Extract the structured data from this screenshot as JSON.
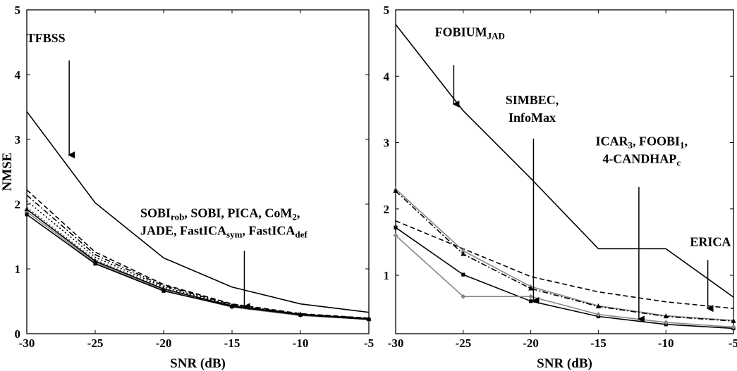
{
  "chart_data": [
    {
      "type": "line",
      "ylabel": "NMSE",
      "xlabel": "SNR (dB)",
      "xlim": [
        -30,
        -5
      ],
      "ylim": [
        0,
        5
      ],
      "xticks": [
        -30,
        -25,
        -20,
        -15,
        -10,
        -5
      ],
      "yticks": [
        0,
        1,
        2,
        3,
        4,
        5
      ],
      "x": [
        -30,
        -25,
        -20,
        -15,
        -10,
        -5
      ],
      "grid": false,
      "series": [
        {
          "values": [
            3.43,
            2.02,
            1.17,
            0.72,
            0.46,
            0.33
          ],
          "color": "#000000",
          "style": "solid",
          "marker": "none"
        },
        {
          "values": [
            2.22,
            1.26,
            0.76,
            0.46,
            0.31,
            0.24
          ],
          "color": "#000000",
          "style": "dashed",
          "marker": "none"
        },
        {
          "values": [
            2.14,
            1.22,
            0.74,
            0.45,
            0.3,
            0.24
          ],
          "color": "#000000",
          "style": "dashdot",
          "marker": "none"
        },
        {
          "values": [
            2.05,
            1.18,
            0.72,
            0.44,
            0.3,
            0.23
          ],
          "color": "#000000",
          "style": "dotted",
          "marker": "none"
        },
        {
          "values": [
            1.95,
            1.14,
            0.7,
            0.43,
            0.29,
            0.23
          ],
          "color": "#555555",
          "style": "dotted",
          "marker": "none"
        },
        {
          "values": [
            1.88,
            1.1,
            0.67,
            0.41,
            0.28,
            0.22
          ],
          "color": "#888888",
          "style": "solid",
          "marker": "diamond"
        },
        {
          "values": [
            1.84,
            1.08,
            0.66,
            0.42,
            0.29,
            0.22
          ],
          "color": "#000000",
          "style": "solid",
          "marker": "square"
        },
        {
          "values": [
            1.92,
            1.12,
            0.69,
            0.43,
            0.3,
            0.23
          ],
          "color": "#000000",
          "style": "solid",
          "marker": "triangle"
        }
      ],
      "annotations": [
        {
          "lines": [
            [
              {
                "t": "TFBSS"
              }
            ]
          ],
          "pos": [
            -28.6,
            4.5
          ],
          "anchor": "middle",
          "arrow_from": [
            -26.9,
            4.22
          ],
          "arrow_to": [
            -26.9,
            2.76
          ]
        },
        {
          "lines": [
            [
              {
                "t": "SOBI"
              },
              {
                "t": "rob",
                "sub": true
              },
              {
                "t": ", SOBI, PICA, CoM"
              },
              {
                "t": "2",
                "sub": true
              },
              {
                "t": ","
              }
            ],
            [
              {
                "t": "JADE, FastICA"
              },
              {
                "t": "sym",
                "sub": true
              },
              {
                "t": ", FastICA"
              },
              {
                "t": "def",
                "sub": true
              }
            ]
          ],
          "pos": [
            -21.7,
            1.8
          ],
          "anchor": "start",
          "arrow_from": [
            -14.1,
            1.28
          ],
          "arrow_to": [
            -14.1,
            0.42
          ]
        }
      ]
    },
    {
      "type": "line",
      "ylabel": "",
      "xlabel": "SNR (dB)",
      "xlim": [
        -30,
        -5
      ],
      "ylim": [
        0,
        5
      ],
      "yrange_drawn": [
        0.12,
        5
      ],
      "xticks": [
        -30,
        -25,
        -20,
        -15,
        -10,
        -5
      ],
      "yticks": [
        1,
        2,
        3,
        4,
        5
      ],
      "x": [
        -30,
        -25,
        -20,
        -15,
        -10,
        -5
      ],
      "grid": false,
      "series": [
        {
          "values": [
            4.78,
            3.48,
            2.46,
            1.4,
            1.4,
            0.67
          ],
          "color": "#000000",
          "style": "solid",
          "marker": "none"
        },
        {
          "values": [
            1.82,
            1.4,
            0.98,
            0.75,
            0.6,
            0.5
          ],
          "color": "#000000",
          "style": "dashed",
          "marker": "none"
        },
        {
          "values": [
            2.3,
            1.37,
            0.83,
            0.54,
            0.39,
            0.32
          ],
          "color": "#888888",
          "style": "solid",
          "marker": "triangle"
        },
        {
          "values": [
            2.27,
            1.32,
            0.8,
            0.53,
            0.38,
            0.31
          ],
          "color": "#000000",
          "style": "dashdot",
          "marker": "triangle"
        },
        {
          "values": [
            1.72,
            1.01,
            0.61,
            0.38,
            0.26,
            0.2
          ],
          "color": "#000000",
          "style": "solid",
          "marker": "square"
        },
        {
          "values": [
            1.6,
            0.68,
            0.68,
            0.41,
            0.29,
            0.22
          ],
          "color": "#888888",
          "style": "solid",
          "marker": "diamond"
        }
      ],
      "annotations": [
        {
          "lines": [
            [
              {
                "t": "FOBIUM"
              },
              {
                "t": "JAD",
                "sub": true
              }
            ]
          ],
          "pos": [
            -27.1,
            4.6
          ],
          "anchor": "start",
          "arrow_from": [
            -25.7,
            4.17
          ],
          "arrow_to": [
            -25.7,
            3.58
          ]
        },
        {
          "lines": [
            [
              {
                "t": "SIMBEC,"
              }
            ],
            [
              {
                "t": "InfoMax"
              }
            ]
          ],
          "pos": [
            -19.9,
            3.58
          ],
          "anchor": "middle",
          "arrow_from": [
            -19.8,
            3.06
          ],
          "arrow_to": [
            -19.8,
            0.62
          ]
        },
        {
          "lines": [
            [
              {
                "t": "ICAR"
              },
              {
                "t": "3",
                "sub": true
              },
              {
                "t": ", FOOBI"
              },
              {
                "t": "1",
                "sub": true
              },
              {
                "t": ","
              }
            ],
            [
              {
                "t": "4-CANDHAP"
              },
              {
                "t": "c",
                "sub": true
              }
            ]
          ],
          "pos": [
            -11.8,
            2.96
          ],
          "anchor": "middle",
          "arrow_from": [
            -12.0,
            2.33
          ],
          "arrow_to": [
            -12.0,
            0.34
          ]
        },
        {
          "lines": [
            [
              {
                "t": "ERICA"
              }
            ]
          ],
          "pos": [
            -6.7,
            1.44
          ],
          "anchor": "middle",
          "arrow_from": [
            -6.9,
            1.23
          ],
          "arrow_to": [
            -6.9,
            0.5
          ]
        }
      ]
    }
  ]
}
